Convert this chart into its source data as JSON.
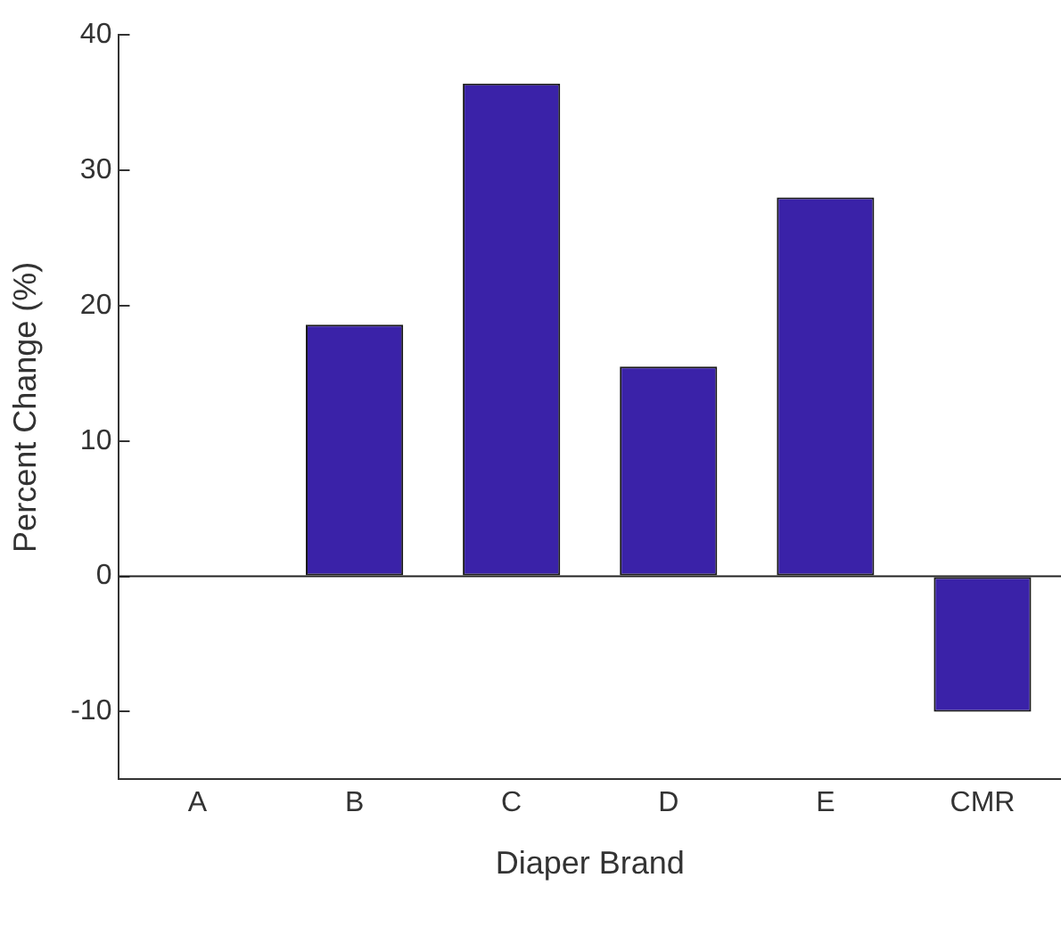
{
  "chart_data": {
    "type": "bar",
    "xlabel": "Diaper Brand",
    "ylabel": "Percent Change (%)",
    "categories": [
      "A",
      "B",
      "C",
      "D",
      "E",
      "CMR"
    ],
    "values": [
      0,
      18.6,
      36.4,
      15.5,
      28.0,
      -10.0
    ],
    "color": "#3a22a8",
    "ylim": [
      -15,
      40
    ],
    "yticks": [
      -10,
      0,
      10,
      20,
      30,
      40
    ],
    "ref_lines": [
      {
        "axis": "y",
        "value": 0,
        "color": "#222222"
      }
    ],
    "grid": false,
    "legend": false
  }
}
